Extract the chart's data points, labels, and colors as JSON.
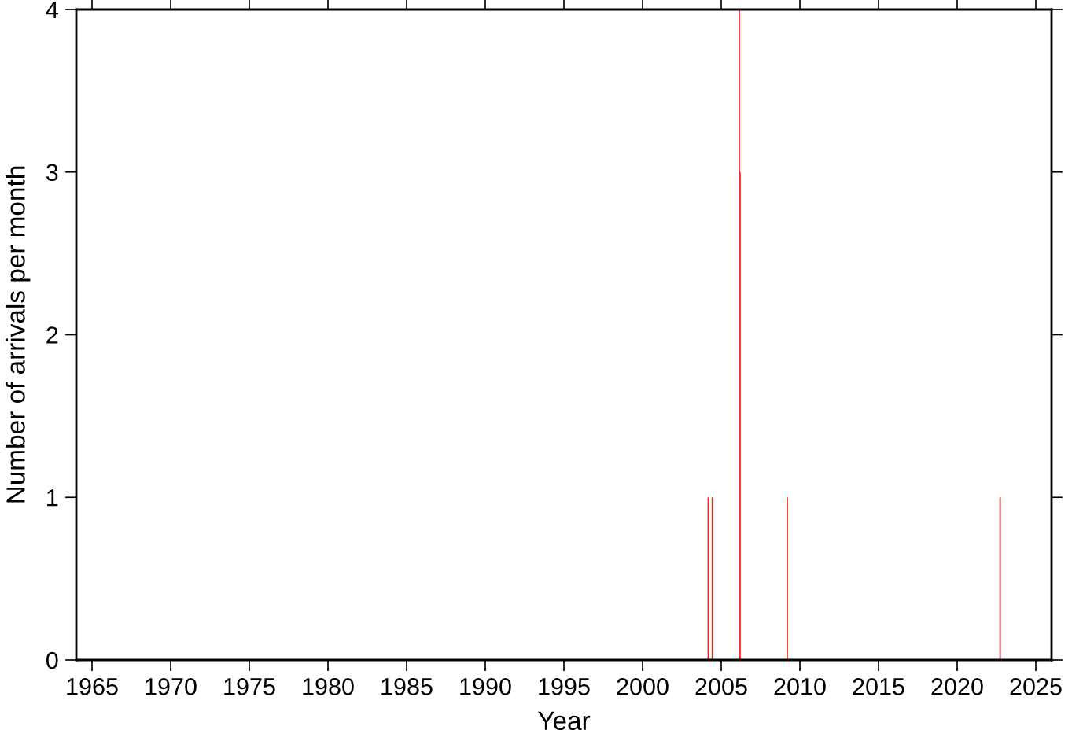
{
  "chart_data": {
    "type": "bar",
    "xlabel": "Year",
    "ylabel": "Number of arrivals per month",
    "x": [
      2004.17,
      2004.43,
      2006.15,
      2006.2,
      2009.2,
      2022.73
    ],
    "values": [
      1,
      1,
      4,
      3,
      1,
      1
    ],
    "colors": [
      "#ff2020",
      "#ff2020",
      "#ff2020",
      "#ff2020",
      "#ff2020",
      "#c00000"
    ],
    "xlim": [
      1964,
      2026
    ],
    "xticks": [
      1965,
      1970,
      1975,
      1980,
      1985,
      1990,
      1995,
      2000,
      2005,
      2010,
      2015,
      2020,
      2025
    ],
    "ylim": [
      0,
      4
    ],
    "yticks": [
      0,
      1,
      2,
      3,
      4
    ],
    "grid": false,
    "legend": false
  }
}
